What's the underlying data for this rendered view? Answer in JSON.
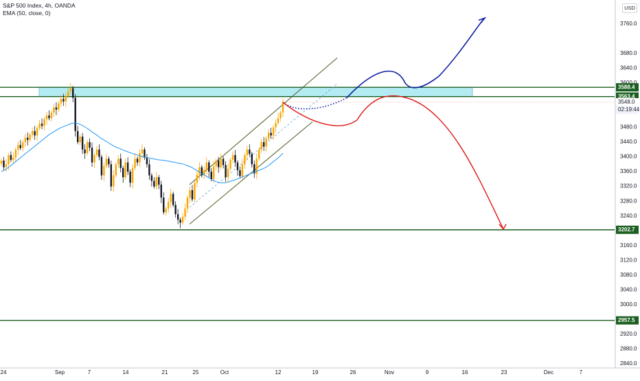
{
  "legend": {
    "symbol": "S&P 500 Index, 4h, OANDA",
    "indicator": "EMA (50, close, 0)"
  },
  "currency_button": "USD",
  "colors": {
    "up": "#f7a600",
    "down": "#131722",
    "ema": "#2196f3",
    "level": "#1b5e20",
    "zone": "#b2ebf2",
    "bull_path": "#0d1fa3",
    "bear_path": "#e01616",
    "channel": "#4a5a1e"
  },
  "chart_data": {
    "type": "candlestick",
    "title": "S&P 500 Index, 4h, OANDA",
    "ylim": [
      2840,
      3800
    ],
    "y_ticks": [
      "3760.0",
      "3680.0",
      "3640.0",
      "3600.0",
      "3480.0",
      "3440.0",
      "3400.0",
      "3360.0",
      "3320.0",
      "3280.0",
      "3240.0",
      "3160.0",
      "3120.0",
      "3080.0",
      "3040.0",
      "3000.0",
      "2920.0",
      "2880.0",
      "2840.0"
    ],
    "x_ticks": [
      "24",
      "Sep",
      "7",
      "14",
      "21",
      "25",
      "Oct",
      "12",
      "19",
      "26",
      "Nov",
      "9",
      "16",
      "23",
      "Dec",
      "7"
    ],
    "price_tags": [
      {
        "label": "3588.4",
        "value": 3588.4,
        "style": "level"
      },
      {
        "label": "3563.4",
        "value": 3563.4,
        "style": "level"
      },
      {
        "label": "3548.0",
        "value": 3548.0,
        "style": "last"
      },
      {
        "label": "02:19:44",
        "value": 3528.0,
        "style": "timer"
      },
      {
        "label": "3202.7",
        "value": 3202.7,
        "style": "level"
      },
      {
        "label": "2957.5",
        "value": 2957.5,
        "style": "level"
      }
    ],
    "horizontal_levels": [
      3588.4,
      3563.4,
      3202.7,
      2957.5
    ],
    "resistance_zone": [
      3563.4,
      3588.4
    ],
    "closes": [
      3390,
      3372,
      3380,
      3405,
      3392,
      3398,
      3420,
      3432,
      3424,
      3440,
      3452,
      3446,
      3460,
      3470,
      3458,
      3478,
      3490,
      3484,
      3502,
      3512,
      3505,
      3520,
      3534,
      3528,
      3545,
      3557,
      3550,
      3565,
      3578,
      3586,
      3560,
      3470,
      3440,
      3455,
      3420,
      3410,
      3440,
      3425,
      3385,
      3405,
      3420,
      3400,
      3350,
      3375,
      3395,
      3380,
      3320,
      3350,
      3380,
      3395,
      3370,
      3345,
      3385,
      3360,
      3330,
      3370,
      3395,
      3385,
      3410,
      3420,
      3398,
      3380,
      3350,
      3335,
      3320,
      3345,
      3325,
      3290,
      3250,
      3260,
      3278,
      3300,
      3270,
      3245,
      3230,
      3222,
      3238,
      3260,
      3290,
      3310,
      3285,
      3330,
      3352,
      3372,
      3350,
      3365,
      3385,
      3360,
      3340,
      3375,
      3390,
      3372,
      3395,
      3378,
      3345,
      3368,
      3392,
      3405,
      3385,
      3364,
      3348,
      3380,
      3405,
      3420,
      3408,
      3380,
      3355,
      3395,
      3420,
      3440,
      3428,
      3450,
      3465,
      3458,
      3480,
      3492,
      3505,
      3520,
      3548
    ],
    "ema_50": [
      3360,
      3365,
      3372,
      3380,
      3388,
      3396,
      3404,
      3412,
      3420,
      3428,
      3436,
      3444,
      3452,
      3460,
      3466,
      3472,
      3478,
      3482,
      3486,
      3490,
      3492,
      3490,
      3486,
      3480,
      3474,
      3466,
      3460,
      3452,
      3446,
      3440,
      3434,
      3428,
      3424,
      3420,
      3416,
      3412,
      3409,
      3406,
      3402,
      3400,
      3398,
      3396,
      3394,
      3392,
      3391,
      3390,
      3388,
      3386,
      3384,
      3382,
      3380,
      3376,
      3372,
      3366,
      3360,
      3354,
      3348,
      3342,
      3336,
      3332,
      3330,
      3330,
      3332,
      3335,
      3338,
      3342,
      3346,
      3350,
      3354,
      3358,
      3362,
      3366,
      3370,
      3376,
      3384,
      3392,
      3400,
      3410
    ],
    "channel": {
      "lower": [
        {
          "date": "25",
          "price": 3218
        },
        {
          "date": "19",
          "price": 3495
        }
      ],
      "upper": [
        {
          "date": "25",
          "price": 3325
        },
        {
          "date": "26",
          "price": 3668
        }
      ]
    },
    "projections": [
      {
        "name": "",
        "color": "#0d1fa3",
        "points": [
          3548,
          3530,
          3545,
          3630,
          3592,
          3775
        ]
      },
      {
        "name": "",
        "color": "#e01616",
        "points": [
          3548,
          3475,
          3568,
          3455,
          3202.7
        ]
      }
    ]
  }
}
